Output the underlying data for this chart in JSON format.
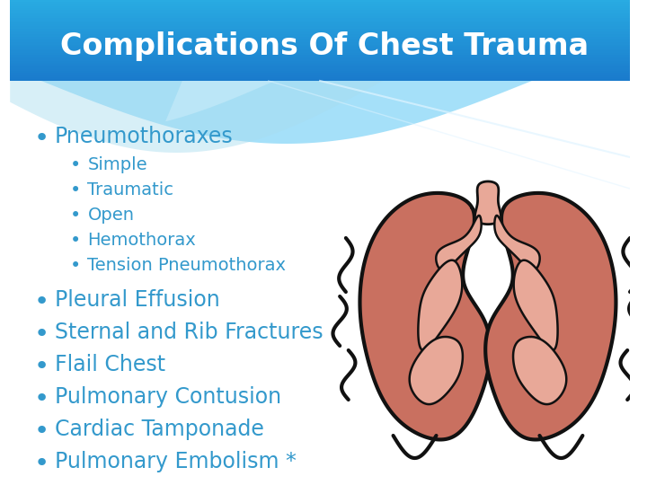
{
  "title": "Complications Of Chest Trauma",
  "title_color": "#ffffff",
  "title_bg_top": "#29ABE2",
  "title_bg_bot": "#5BC8F5",
  "background_color": "#ffffff",
  "bullet_color": "#3399CC",
  "sub_bullet_color": "#3399CC",
  "main_bullets": [
    "Pneumothoraxes",
    "Pleural Effusion",
    "Sternal and Rib Fractures",
    "Flail Chest",
    "Pulmonary Contusion",
    "Cardiac Tamponade",
    "Pulmonary Embolism *"
  ],
  "sub_bullets": [
    "Simple",
    "Traumatic",
    "Open",
    "Hemothorax",
    "Tension Pneumothorax"
  ],
  "lung_fill": "#C97060",
  "lung_inner": "#E8A898",
  "lung_outline": "#111111",
  "figsize": [
    7.2,
    5.4
  ],
  "dpi": 100
}
